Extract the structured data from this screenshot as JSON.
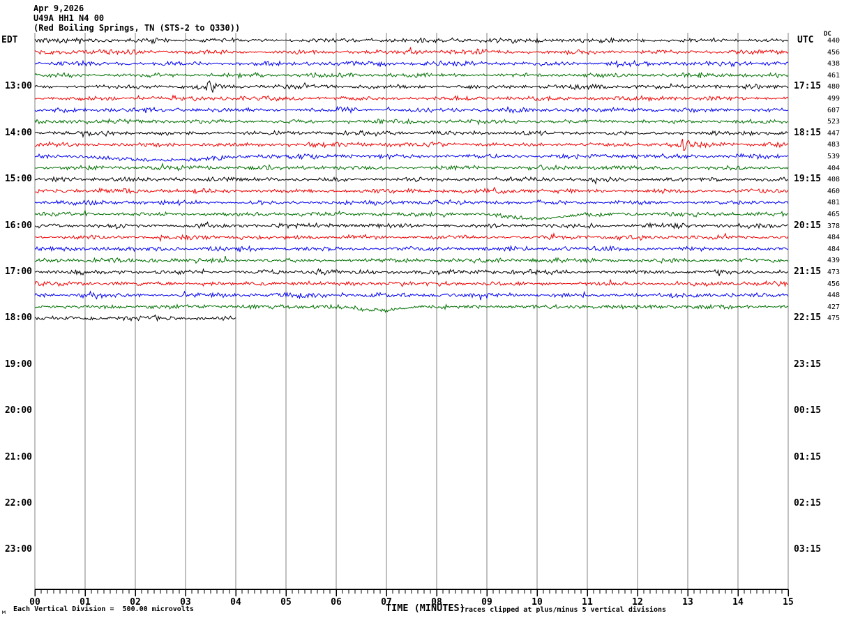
{
  "title": {
    "line1": "Apr 9,2026",
    "line2": "U49A HH1 N4 00",
    "line3": "(Red Boiling Springs, TN (STS-2 to Q330))"
  },
  "headers": {
    "left_timezone": "EDT",
    "right_timezone": "UTC",
    "dc_header": "DC"
  },
  "footer": {
    "corner_mark": "м",
    "scale_note": "Each Vertical Division =  500.00 microvolts",
    "x_axis_label": "TIME (MINUTES)",
    "clip_note": "Traces clipped at plus/minus 5 vertical divisions"
  },
  "colors": {
    "black": "#000000",
    "red": "#f00000",
    "blue": "#0000f0",
    "green": "#007000",
    "grid": "#808080",
    "axis": "#000000"
  },
  "axes": {
    "x_ticks": [
      "00",
      "01",
      "02",
      "03",
      "04",
      "05",
      "06",
      "07",
      "08",
      "09",
      "10",
      "11",
      "12",
      "13",
      "14",
      "15"
    ],
    "left_hours": [
      {
        "row": 4,
        "label": "13:00"
      },
      {
        "row": 8,
        "label": "14:00"
      },
      {
        "row": 12,
        "label": "15:00"
      },
      {
        "row": 16,
        "label": "16:00"
      },
      {
        "row": 20,
        "label": "17:00"
      },
      {
        "row": 24,
        "label": "18:00"
      },
      {
        "row": 28,
        "label": "19:00"
      },
      {
        "row": 32,
        "label": "20:00"
      },
      {
        "row": 36,
        "label": "21:00"
      },
      {
        "row": 40,
        "label": "22:00"
      },
      {
        "row": 44,
        "label": "23:00"
      }
    ],
    "right_utc": [
      {
        "row": 4,
        "label": "17:15"
      },
      {
        "row": 8,
        "label": "18:15"
      },
      {
        "row": 12,
        "label": "19:15"
      },
      {
        "row": 16,
        "label": "20:15"
      },
      {
        "row": 20,
        "label": "21:15"
      },
      {
        "row": 24,
        "label": "22:15"
      },
      {
        "row": 28,
        "label": "23:15"
      },
      {
        "row": 32,
        "label": "00:15"
      },
      {
        "row": 36,
        "label": "01:15"
      },
      {
        "row": 40,
        "label": "02:15"
      },
      {
        "row": 44,
        "label": "03:15"
      }
    ]
  },
  "chart_data": {
    "type": "line",
    "title": "Helicorder seismogram U49A HH1 N4 00 — Apr 9,2026 — Red Boiling Springs, TN (STS-2 to Q330)",
    "xlabel": "TIME (MINUTES)",
    "xlim": [
      0,
      15
    ],
    "minutes_per_row": 15,
    "vertical_division_microvolts": 500.0,
    "clip_divisions": 5,
    "grid": "vertical minute lines only",
    "rows": [
      {
        "dc": 440,
        "color": "black",
        "events": []
      },
      {
        "dc": 456,
        "color": "red",
        "events": []
      },
      {
        "dc": 438,
        "color": "blue",
        "events": [
          {
            "type": "burst",
            "t0": 11.1,
            "t1": 12.3,
            "amp": 1.6
          }
        ]
      },
      {
        "dc": 461,
        "color": "green",
        "events": []
      },
      {
        "dc": 480,
        "color": "black",
        "events": [
          {
            "type": "burst",
            "t0": 3.35,
            "t1": 3.9,
            "amp": 3.2
          }
        ]
      },
      {
        "dc": 499,
        "color": "red",
        "events": []
      },
      {
        "dc": 607,
        "color": "blue",
        "events": [
          {
            "type": "burst",
            "t0": 5.8,
            "t1": 6.7,
            "amp": 2.4
          }
        ]
      },
      {
        "dc": 523,
        "color": "green",
        "events": []
      },
      {
        "dc": 447,
        "color": "black",
        "events": []
      },
      {
        "dc": 483,
        "color": "red",
        "events": [
          {
            "type": "burst",
            "t0": 12.55,
            "t1": 13.5,
            "amp": 3.0
          }
        ]
      },
      {
        "dc": 539,
        "color": "blue",
        "events": [
          {
            "type": "sag",
            "t0": 0.7,
            "t1": 5.0,
            "depth": 5.5
          }
        ]
      },
      {
        "dc": 404,
        "color": "green",
        "events": []
      },
      {
        "dc": 408,
        "color": "black",
        "events": []
      },
      {
        "dc": 460,
        "color": "red",
        "events": []
      },
      {
        "dc": 481,
        "color": "blue",
        "events": []
      },
      {
        "dc": 465,
        "color": "green",
        "events": [
          {
            "type": "sag",
            "t0": 9.0,
            "t1": 11.3,
            "depth": 7.0
          }
        ]
      },
      {
        "dc": 378,
        "color": "black",
        "events": []
      },
      {
        "dc": 484,
        "color": "red",
        "events": []
      },
      {
        "dc": 484,
        "color": "blue",
        "events": []
      },
      {
        "dc": 439,
        "color": "green",
        "events": []
      },
      {
        "dc": 473,
        "color": "black",
        "events": [
          {
            "type": "burst",
            "t0": 5.35,
            "t1": 6.3,
            "amp": 2.6
          }
        ]
      },
      {
        "dc": 456,
        "color": "red",
        "events": []
      },
      {
        "dc": 448,
        "color": "blue",
        "events": [
          {
            "type": "burst",
            "t0": 0.7,
            "t1": 1.7,
            "amp": 2.3
          }
        ]
      },
      {
        "dc": 427,
        "color": "green",
        "events": [
          {
            "type": "sag",
            "t0": 6.1,
            "t1": 7.9,
            "depth": 5.0
          }
        ]
      },
      {
        "dc": 475,
        "color": "black",
        "end_minute": 4.0,
        "events": []
      }
    ],
    "notes": [
      "25 recorded 15-minute traces of background seismic noise; remaining rows (19:00–23:00 EDT) empty",
      "Color cycle per row: black, red, blue, green",
      "DC column gives per-trace offset counts"
    ]
  }
}
